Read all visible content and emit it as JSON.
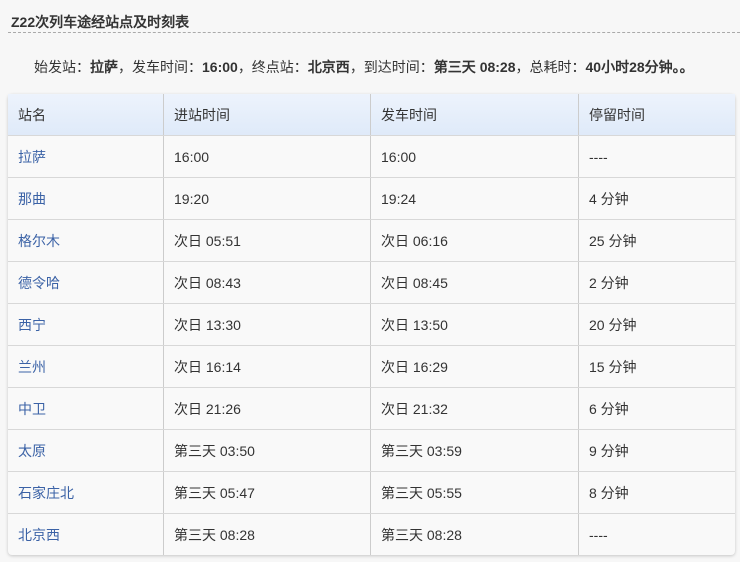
{
  "title": "Z22次列车途经站点及时刻表",
  "summary": {
    "l1": "始发站：",
    "origin": "拉萨",
    "l2": "，发车时间：",
    "depart": "16:00",
    "l3": "，终点站：",
    "dest": "北京西",
    "l4": "，到达时间：",
    "arrive": "第三天 08:28",
    "l5": "，总耗时：",
    "total": "40小时28分钟。。"
  },
  "headers": [
    "站名",
    "进站时间",
    "发车时间",
    "停留时间"
  ],
  "rows": [
    [
      "拉萨",
      "16:00",
      "16:00",
      "----"
    ],
    [
      "那曲",
      "19:20",
      "19:24",
      "4 分钟"
    ],
    [
      "格尔木",
      "次日 05:51",
      "次日 06:16",
      "25 分钟"
    ],
    [
      "德令哈",
      "次日 08:43",
      "次日 08:45",
      "2 分钟"
    ],
    [
      "西宁",
      "次日 13:30",
      "次日 13:50",
      "20 分钟"
    ],
    [
      "兰州",
      "次日 16:14",
      "次日 16:29",
      "15 分钟"
    ],
    [
      "中卫",
      "次日 21:26",
      "次日 21:32",
      "6 分钟"
    ],
    [
      "太原",
      "第三天 03:50",
      "第三天 03:59",
      "9 分钟"
    ],
    [
      "石家庄北",
      "第三天 05:47",
      "第三天 05:55",
      "8 分钟"
    ],
    [
      "北京西",
      "第三天 08:28",
      "第三天 08:28",
      "----"
    ]
  ]
}
